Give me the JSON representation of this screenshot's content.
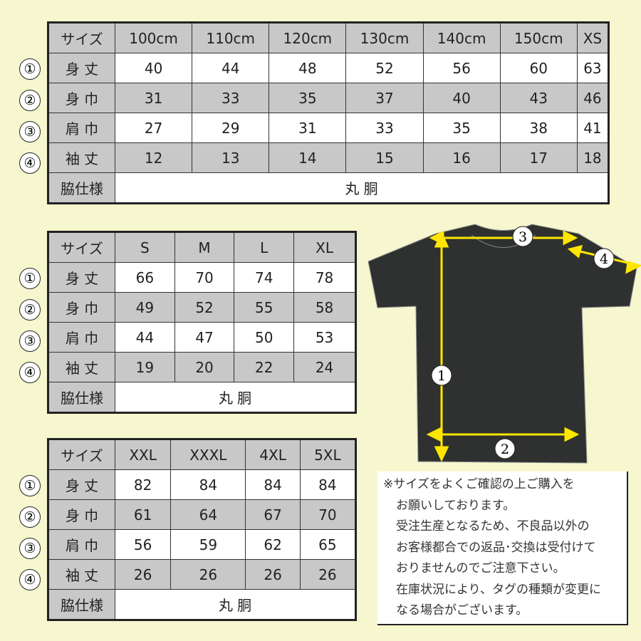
{
  "row_markers": [
    "①",
    "②",
    "③",
    "④"
  ],
  "tables": [
    {
      "header": [
        "サイズ",
        "100cm",
        "110cm",
        "120cm",
        "130cm",
        "140cm",
        "150cm",
        "XS"
      ],
      "rows": [
        {
          "label": "身 丈",
          "values": [
            "40",
            "44",
            "48",
            "52",
            "56",
            "60",
            "63"
          ]
        },
        {
          "label": "身 巾",
          "values": [
            "31",
            "33",
            "35",
            "37",
            "40",
            "43",
            "46"
          ]
        },
        {
          "label": "肩 巾",
          "values": [
            "27",
            "29",
            "31",
            "33",
            "35",
            "38",
            "41"
          ]
        },
        {
          "label": "袖 丈",
          "values": [
            "12",
            "13",
            "14",
            "15",
            "16",
            "17",
            "18"
          ]
        }
      ],
      "side_label": "脇仕様",
      "side_value": "丸 胴"
    },
    {
      "header": [
        "サイズ",
        "S",
        "M",
        "L",
        "XL"
      ],
      "rows": [
        {
          "label": "身 丈",
          "values": [
            "66",
            "70",
            "74",
            "78"
          ]
        },
        {
          "label": "身 巾",
          "values": [
            "49",
            "52",
            "55",
            "58"
          ]
        },
        {
          "label": "肩 巾",
          "values": [
            "44",
            "47",
            "50",
            "53"
          ]
        },
        {
          "label": "袖 丈",
          "values": [
            "19",
            "20",
            "22",
            "24"
          ]
        }
      ],
      "side_label": "脇仕様",
      "side_value": "丸 胴"
    },
    {
      "header": [
        "サイズ",
        "XXL",
        "XXXL",
        "4XL",
        "5XL"
      ],
      "rows": [
        {
          "label": "身 丈",
          "values": [
            "82",
            "84",
            "84",
            "84"
          ]
        },
        {
          "label": "身 巾",
          "values": [
            "61",
            "64",
            "67",
            "70"
          ]
        },
        {
          "label": "肩 巾",
          "values": [
            "56",
            "59",
            "62",
            "65"
          ]
        },
        {
          "label": "袖 丈",
          "values": [
            "26",
            "26",
            "26",
            "26"
          ]
        }
      ],
      "side_label": "脇仕様",
      "side_value": "丸 胴"
    }
  ],
  "diagram": {
    "labels": [
      "1",
      "2",
      "3",
      "4"
    ],
    "shirt_color": "#2f3130",
    "arrow_color": "#ffe600"
  },
  "note": [
    "※サイズをよくご確認の上ご購入を",
    "お願いしております。",
    "受注生産となるため、不良品以外の",
    "お客様都合での返品･交換は受付けて",
    "おりませんのでご注意下さい。",
    "在庫状況により、タグの種類が変更に",
    "なる場合がございます。"
  ]
}
